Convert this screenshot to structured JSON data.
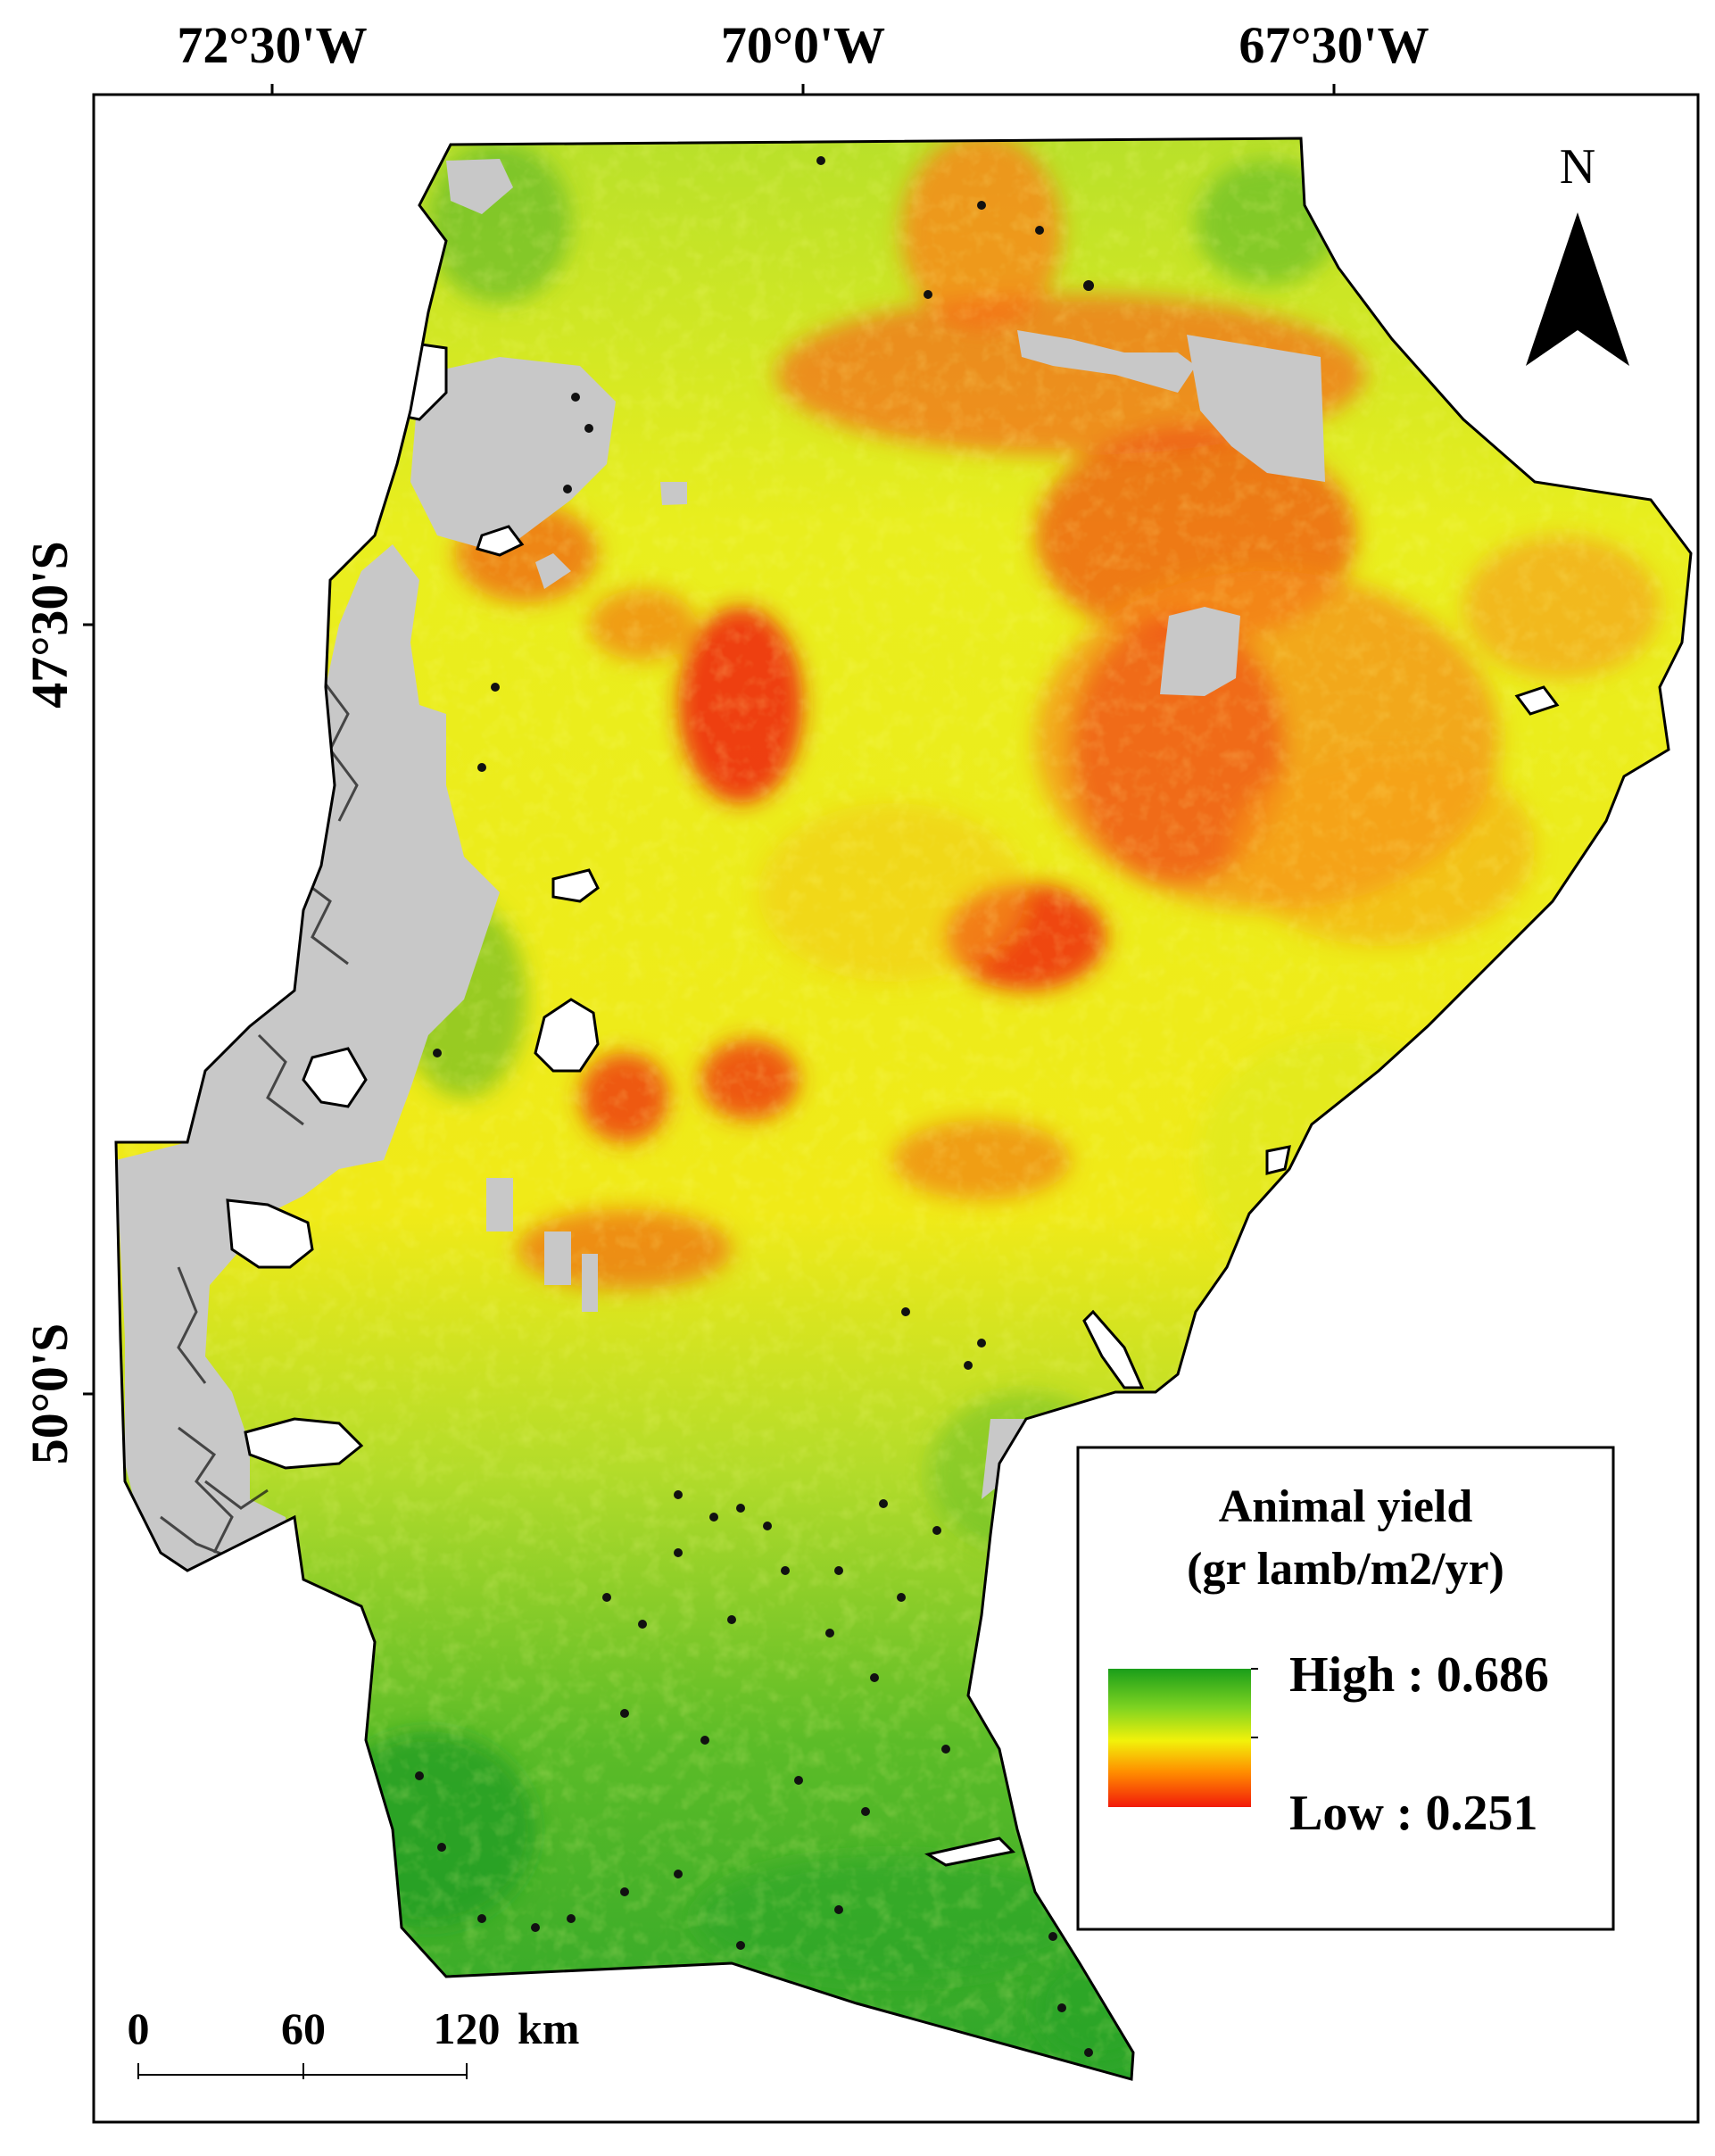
{
  "map": {
    "graticule": {
      "longitude_labels": [
        "72°30'W",
        "70°0'W",
        "67°30'W"
      ],
      "latitude_labels": [
        "47°30'S",
        "50°0'S"
      ]
    },
    "legend": {
      "title_line1": "Animal yield",
      "title_line2": "(gr lamb/m2/yr)",
      "high_label": "High : 0.686",
      "low_label": "Low : 0.251",
      "high_value": 0.686,
      "low_value": 0.251,
      "gradient_colors": [
        "#1a9e1a",
        "#7ed321",
        "#f2f20a",
        "#ff8c00",
        "#f21a0a"
      ]
    },
    "north_arrow": {
      "label": "N"
    },
    "scale_bar": {
      "ticks": [
        "0",
        "60",
        "120"
      ],
      "unit": "km"
    },
    "colors": {
      "no_data": "#c8c8c8",
      "water": "#ffffff",
      "high": "#1a9e1a",
      "medium": "#f2f20a",
      "low": "#f21a0a",
      "orange": "#ff9a1a",
      "frame": "#000000"
    }
  }
}
